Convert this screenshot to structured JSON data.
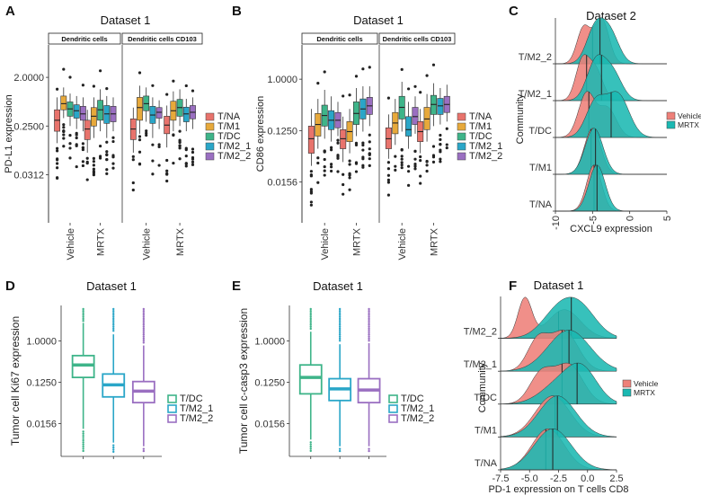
{
  "figure_name": "multi-panel-expression-figure",
  "chart_data": [
    {
      "panel": "A",
      "type": "box",
      "title": "Dataset 1",
      "ylabel": "PD-L1 expression",
      "yscale": "log2",
      "yticks": [
        "2.0000",
        "0.2500",
        "0.0312"
      ],
      "ytick_values": [
        2.0,
        0.25,
        0.0312
      ],
      "ylim": [
        0.004,
        8
      ],
      "facets": [
        "Dendritic cells",
        "Dendritic cells CD103"
      ],
      "groups": [
        "Vehicle",
        "MRTX"
      ],
      "legend": [
        "T/NA",
        "T/M1",
        "T/DC",
        "T/M2_1",
        "T/M2_2"
      ],
      "colors": [
        "#E8736C",
        "#E7A93B",
        "#3EB489",
        "#2AA6C8",
        "#9A6FC1"
      ],
      "boxes": [
        [
          [
            0.12,
            0.2,
            0.32,
            0.5,
            0.85
          ],
          [
            0.35,
            0.5,
            0.65,
            0.9,
            1.3
          ],
          [
            0.25,
            0.38,
            0.52,
            0.7,
            1.0
          ],
          [
            0.22,
            0.35,
            0.48,
            0.62,
            0.9
          ],
          [
            0.2,
            0.32,
            0.42,
            0.58,
            0.85
          ],
          [
            0.08,
            0.14,
            0.22,
            0.32,
            0.5
          ],
          [
            0.15,
            0.25,
            0.38,
            0.55,
            0.85
          ],
          [
            0.2,
            0.32,
            0.5,
            0.75,
            1.2
          ],
          [
            0.15,
            0.28,
            0.42,
            0.6,
            0.9
          ],
          [
            0.2,
            0.3,
            0.42,
            0.58,
            0.85
          ]
        ],
        [
          [
            0.08,
            0.14,
            0.22,
            0.34,
            0.55
          ],
          [
            0.18,
            0.32,
            0.55,
            0.85,
            1.4
          ],
          [
            0.3,
            0.48,
            0.65,
            0.9,
            1.3
          ],
          [
            0.15,
            0.28,
            0.4,
            0.58,
            0.85
          ],
          [
            0.22,
            0.35,
            0.45,
            0.55,
            0.75
          ],
          [
            0.1,
            0.18,
            0.26,
            0.38,
            0.6
          ],
          [
            0.2,
            0.32,
            0.48,
            0.72,
            1.1
          ],
          [
            0.25,
            0.38,
            0.55,
            0.78,
            1.2
          ],
          [
            0.2,
            0.3,
            0.42,
            0.56,
            0.8
          ],
          [
            0.22,
            0.34,
            0.45,
            0.6,
            0.85
          ]
        ]
      ]
    },
    {
      "panel": "B",
      "type": "box",
      "title": "Dataset 1",
      "ylabel": "CD86 expression",
      "yscale": "log2",
      "yticks": [
        "1.0000",
        "0.1250",
        "0.0156"
      ],
      "ytick_values": [
        1.0,
        0.125,
        0.0156
      ],
      "ylim": [
        0.003,
        4
      ],
      "facets": [
        "Dendritic cells",
        "Dendritic cells CD103"
      ],
      "groups": [
        "Vehicle",
        "MRTX"
      ],
      "legend": [
        "T/NA",
        "T/M1",
        "T/DC",
        "T/M2_1",
        "T/M2_2"
      ],
      "colors": [
        "#E8736C",
        "#E7A93B",
        "#3EB489",
        "#2AA6C8",
        "#9A6FC1"
      ],
      "boxes": [
        [
          [
            0.03,
            0.05,
            0.09,
            0.15,
            0.3
          ],
          [
            0.06,
            0.1,
            0.16,
            0.25,
            0.45
          ],
          [
            0.09,
            0.15,
            0.23,
            0.35,
            0.65
          ],
          [
            0.08,
            0.13,
            0.19,
            0.28,
            0.5
          ],
          [
            0.1,
            0.14,
            0.19,
            0.26,
            0.4
          ],
          [
            0.035,
            0.06,
            0.09,
            0.13,
            0.22
          ],
          [
            0.05,
            0.08,
            0.12,
            0.18,
            0.3
          ],
          [
            0.1,
            0.16,
            0.25,
            0.4,
            0.7
          ],
          [
            0.12,
            0.2,
            0.3,
            0.45,
            0.75
          ],
          [
            0.15,
            0.24,
            0.34,
            0.48,
            0.75
          ]
        ],
        [
          [
            0.04,
            0.06,
            0.09,
            0.14,
            0.24
          ],
          [
            0.07,
            0.11,
            0.17,
            0.26,
            0.45
          ],
          [
            0.12,
            0.2,
            0.32,
            0.5,
            0.9
          ],
          [
            0.06,
            0.1,
            0.13,
            0.22,
            0.4
          ],
          [
            0.11,
            0.16,
            0.22,
            0.32,
            0.5
          ],
          [
            0.05,
            0.08,
            0.12,
            0.18,
            0.3
          ],
          [
            0.08,
            0.13,
            0.2,
            0.32,
            0.55
          ],
          [
            0.15,
            0.24,
            0.36,
            0.52,
            0.85
          ],
          [
            0.16,
            0.24,
            0.34,
            0.46,
            0.7
          ],
          [
            0.18,
            0.26,
            0.36,
            0.5,
            0.8
          ]
        ]
      ]
    },
    {
      "panel": "C",
      "type": "ridgeline",
      "title": "Dataset 2",
      "xlabel": "CXCL9 expression",
      "ylabel": "Community",
      "xlim": [
        -10,
        5
      ],
      "xticks": [
        -10,
        -5,
        0,
        5
      ],
      "communities": [
        "T/NA",
        "T/M1",
        "T/DC",
        "T/M2_1",
        "T/M2_2"
      ],
      "legend": [
        "Vehicle",
        "MRTX"
      ],
      "colors": [
        "#EE8079",
        "#1BB8B2"
      ],
      "series": [
        {
          "name": "Vehicle",
          "components": [
            [
              [
                -4.8,
                1.0,
                1.0
              ]
            ],
            [
              [
                -5.0,
                1.1,
                1.0
              ]
            ],
            [
              [
                -5.8,
                1.1,
                0.9
              ],
              [
                -3.0,
                1.2,
                0.6
              ]
            ],
            [
              [
                -6.4,
                0.9,
                1.0
              ],
              [
                -4.6,
                1.0,
                0.8
              ]
            ],
            [
              [
                -6.2,
                0.9,
                0.8
              ],
              [
                -3.8,
                1.0,
                1.0
              ]
            ]
          ],
          "medians": [
            -4.8,
            -5.2,
            -5.5,
            -5.8,
            -5.0
          ]
        },
        {
          "name": "MRTX",
          "components": [
            [
              [
                -4.4,
                1.1,
                1.0
              ]
            ],
            [
              [
                -4.8,
                1.2,
                0.95
              ]
            ],
            [
              [
                -4.6,
                1.3,
                0.6
              ],
              [
                -1.6,
                1.5,
                0.75
              ]
            ],
            [
              [
                -4.6,
                1.2,
                0.9
              ],
              [
                -2.4,
                1.3,
                0.7
              ]
            ],
            [
              [
                -4.6,
                1.2,
                1.0
              ],
              [
                -2.6,
                1.2,
                0.8
              ]
            ]
          ],
          "medians": [
            -4.4,
            -4.6,
            -2.5,
            -3.8,
            -4.0
          ]
        }
      ]
    },
    {
      "panel": "D",
      "type": "box",
      "title": "Dataset 1",
      "ylabel": "Tumor cell Ki67 expression",
      "yscale": "log2",
      "yticks": [
        "1.0000",
        "0.1250",
        "0.0156"
      ],
      "ytick_values": [
        1.0,
        0.125,
        0.0156
      ],
      "ylim": [
        0.003,
        6
      ],
      "legend": [
        "T/DC",
        "T/M2_1",
        "T/M2_2"
      ],
      "colors": [
        "#3EB489",
        "#2AA6C8",
        "#9A6FC1"
      ],
      "boxes": [
        [
          0.012,
          0.16,
          0.3,
          0.48,
          2.5
        ],
        [
          0.006,
          0.06,
          0.11,
          0.19,
          1.4
        ],
        [
          0.005,
          0.045,
          0.08,
          0.13,
          0.8
        ]
      ]
    },
    {
      "panel": "E",
      "type": "box",
      "title": "Dataset 1",
      "ylabel": "Tumor cell c-casp3 expression",
      "yscale": "log2",
      "yticks": [
        "1.0000",
        "0.1250",
        "0.0156"
      ],
      "ytick_values": [
        1.0,
        0.125,
        0.0156
      ],
      "ylim": [
        0.003,
        6
      ],
      "legend": [
        "T/DC",
        "T/M2_1",
        "T/M2_2"
      ],
      "colors": [
        "#3EB489",
        "#2AA6C8",
        "#9A6FC1"
      ],
      "boxes": [
        [
          0.007,
          0.07,
          0.16,
          0.3,
          1.6
        ],
        [
          0.005,
          0.05,
          0.09,
          0.15,
          0.85
        ],
        [
          0.005,
          0.045,
          0.085,
          0.15,
          0.9
        ]
      ]
    },
    {
      "panel": "F",
      "type": "ridgeline",
      "title": "Dataset 1",
      "xlabel": "PD-1 expression on T cells CD8",
      "ylabel": "Community",
      "xlim": [
        -7.5,
        2.5
      ],
      "xticks": [
        -7.5,
        -5.0,
        -2.5,
        0.0,
        2.5
      ],
      "communities": [
        "T/NA",
        "T/M1",
        "T/DC",
        "T/M2_1",
        "T/M2_2"
      ],
      "legend": [
        "Vehicle",
        "MRTX"
      ],
      "colors": [
        "#EE8079",
        "#1BB8B2"
      ],
      "series": [
        {
          "name": "Vehicle",
          "components": [
            [
              [
                -3.4,
                1.4,
                1.0
              ]
            ],
            [
              [
                -3.0,
                1.5,
                1.0
              ]
            ],
            [
              [
                -4.0,
                1.0,
                0.65
              ],
              [
                -1.6,
                1.2,
                0.85
              ]
            ],
            [
              [
                -4.3,
                0.9,
                0.6
              ],
              [
                -2.0,
                1.2,
                0.8
              ]
            ],
            [
              [
                -5.4,
                0.6,
                0.9
              ],
              [
                -2.0,
                1.4,
                0.65
              ]
            ]
          ],
          "medians": [
            -3.6,
            -2.8,
            -2.2,
            -2.2,
            -2.5
          ]
        },
        {
          "name": "MRTX",
          "components": [
            [
              [
                -3.0,
                1.6,
                0.85
              ]
            ],
            [
              [
                -2.6,
                1.6,
                0.9
              ]
            ],
            [
              [
                -2.4,
                1.6,
                0.6
              ],
              [
                -0.4,
                1.3,
                0.9
              ]
            ],
            [
              [
                -1.6,
                1.8,
                0.9
              ]
            ],
            [
              [
                -2.6,
                1.4,
                0.75
              ],
              [
                -0.6,
                1.4,
                0.85
              ]
            ]
          ],
          "medians": [
            -3.0,
            -2.6,
            -0.9,
            -1.6,
            -1.4
          ]
        }
      ]
    }
  ]
}
